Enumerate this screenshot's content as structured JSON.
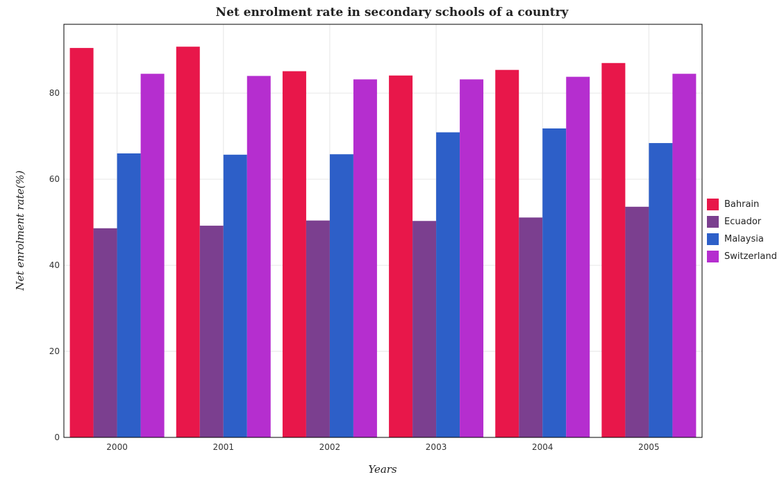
{
  "chart_data": {
    "type": "bar",
    "title": "Net enrolment rate in secondary schools of a country",
    "xlabel": "Years",
    "ylabel": "Net enrolment rate(%)",
    "categories": [
      "2000",
      "2001",
      "2002",
      "2003",
      "2004",
      "2005"
    ],
    "ylim": [
      0,
      96
    ],
    "yticks": [
      "0",
      "20",
      "40",
      "60",
      "80"
    ],
    "grid": true,
    "legend_position": "right",
    "series": [
      {
        "name": "Bahrain",
        "color": "#e8174a",
        "values": [
          90.5,
          90.8,
          85.1,
          84.1,
          85.4,
          87.0
        ]
      },
      {
        "name": "Ecuador",
        "color": "#7b3f8f",
        "values": [
          48.6,
          49.2,
          50.4,
          50.3,
          51.1,
          53.6
        ]
      },
      {
        "name": "Malaysia",
        "color": "#2d5fc8",
        "values": [
          66.0,
          65.7,
          65.8,
          70.9,
          71.8,
          68.4
        ]
      },
      {
        "name": "Switzerland",
        "color": "#b52ecf",
        "values": [
          84.5,
          84.0,
          83.2,
          83.2,
          83.8,
          84.5
        ]
      }
    ]
  }
}
